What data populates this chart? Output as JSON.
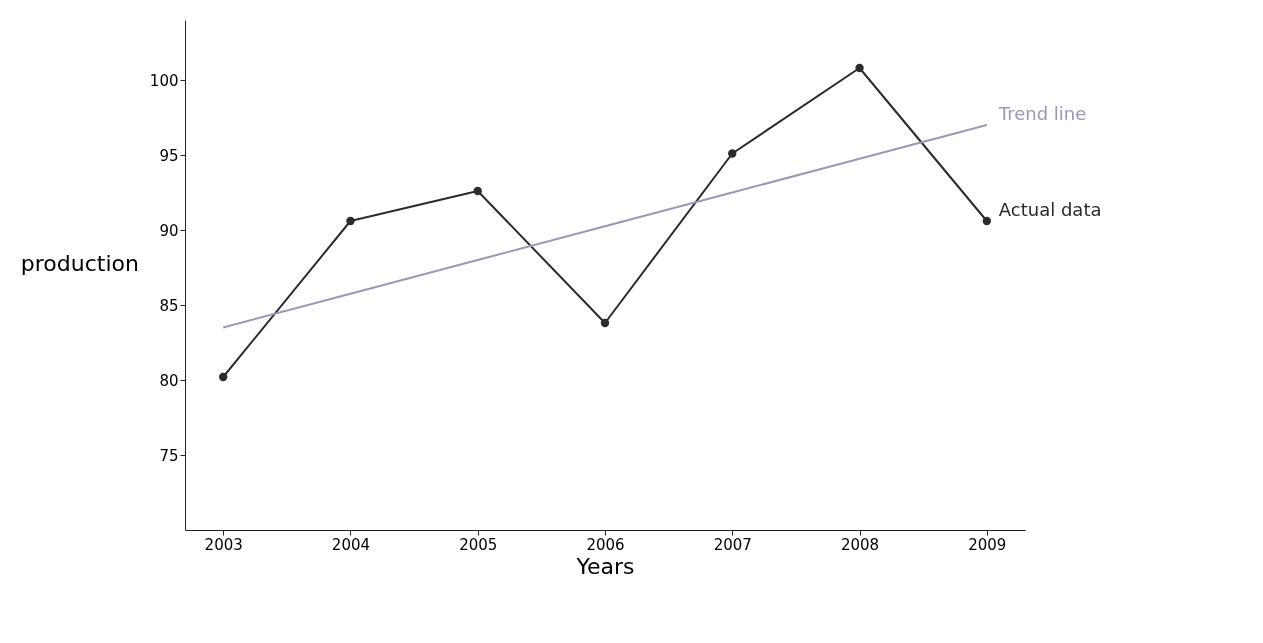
{
  "chart_data": {
    "type": "line",
    "xlabel": "Years",
    "ylabel": "production",
    "categories": [
      "2003",
      "2004",
      "2005",
      "2006",
      "2007",
      "2008",
      "2009"
    ],
    "ylim": [
      70,
      104
    ],
    "yticks": [
      75,
      80,
      85,
      90,
      95,
      100
    ],
    "marker": "circle",
    "line_style": "solid",
    "series": [
      {
        "name": "Actual data",
        "color": "#2b2b2b",
        "values": [
          80.2,
          90.6,
          92.6,
          83.8,
          95.1,
          100.8,
          90.6
        ]
      },
      {
        "name": "Trend line",
        "color": "#9d97b5",
        "type": "line",
        "marker": "none",
        "values": [
          83.5,
          85.75,
          88,
          90.25,
          92.5,
          94.75,
          97
        ]
      }
    ]
  }
}
